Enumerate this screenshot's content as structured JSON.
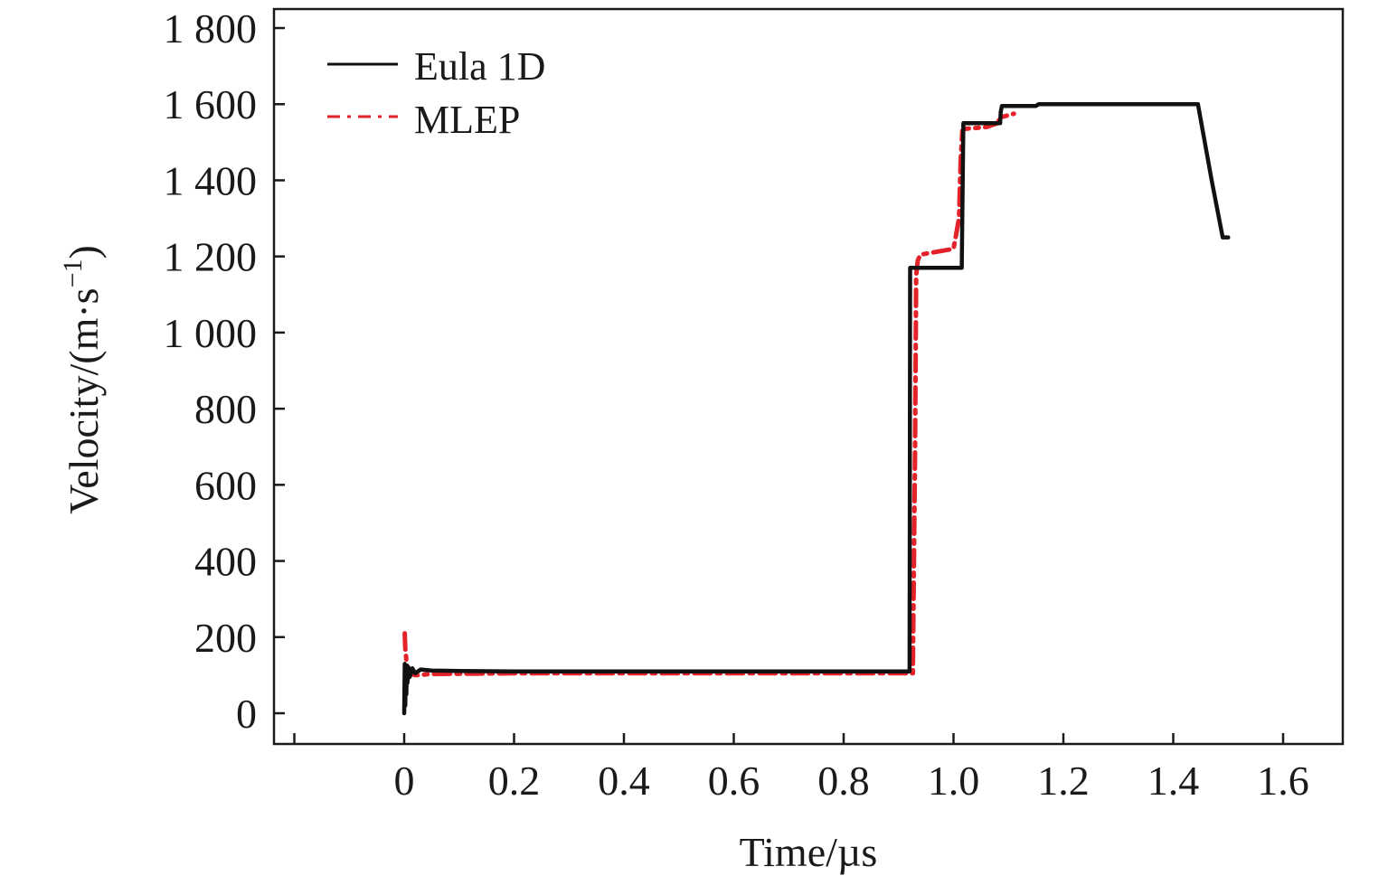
{
  "chart_data": {
    "type": "line",
    "xlabel": "Time/µs",
    "ylabel_main": "Velocity/(m·s",
    "ylabel_sup": "−1",
    "ylabel_close": ")",
    "xlim": [
      -0.2,
      1.7
    ],
    "ylim": [
      -80,
      1840
    ],
    "x_ticks": [
      0,
      0.2,
      0.4,
      0.6,
      0.8,
      1.0,
      1.2,
      1.4,
      1.6
    ],
    "x_tick_labels": [
      "0",
      "0.2",
      "0.4",
      "0.6",
      "0.8",
      "1.0",
      "1.2",
      "1.4",
      "1.6"
    ],
    "x_minor_ticks": [
      -0.2
    ],
    "y_ticks": [
      0,
      200,
      400,
      600,
      800,
      1000,
      1200,
      1400,
      1600,
      1800
    ],
    "y_tick_labels": [
      "0",
      "200",
      "400",
      "600",
      "800",
      "1 000",
      "1 200",
      "1 400",
      "1 600",
      "1 800"
    ],
    "grid": false,
    "legend_position": "top-left",
    "series": [
      {
        "name": "Eula 1D",
        "color": "#111111",
        "style": "solid",
        "x": [
          0,
          0.001,
          0.002,
          0.003,
          0.004,
          0.005,
          0.006,
          0.008,
          0.01,
          0.015,
          0.02,
          0.03,
          0.05,
          0.1,
          0.2,
          0.5,
          0.92,
          0.921,
          0.95,
          1.015,
          1.016,
          1.018,
          1.085,
          1.086,
          1.088,
          1.15,
          1.155,
          1.44,
          1.445,
          1.47,
          1.49,
          1.5
        ],
        "y": [
          0,
          130,
          20,
          120,
          50,
          125,
          80,
          120,
          95,
          118,
          105,
          115,
          112,
          111,
          110,
          110,
          110,
          1170,
          1170,
          1170,
          1300,
          1550,
          1550,
          1580,
          1595,
          1595,
          1600,
          1600,
          1600,
          1400,
          1250,
          1250
        ]
      },
      {
        "name": "MLEP",
        "color": "#e3222a",
        "style": "dash-dot",
        "x": [
          0.001,
          0.002,
          0.004,
          0.006,
          0.01,
          0.02,
          0.05,
          0.2,
          0.5,
          0.926,
          0.93,
          0.932,
          0.935,
          0.94,
          1.0,
          1.01,
          1.013,
          1.016,
          1.02,
          1.06,
          1.08,
          1.085,
          1.11
        ],
        "y": [
          210,
          170,
          140,
          120,
          105,
          100,
          103,
          105,
          105,
          105,
          700,
          1150,
          1190,
          1205,
          1220,
          1300,
          1450,
          1530,
          1535,
          1540,
          1550,
          1565,
          1575
        ]
      }
    ]
  }
}
